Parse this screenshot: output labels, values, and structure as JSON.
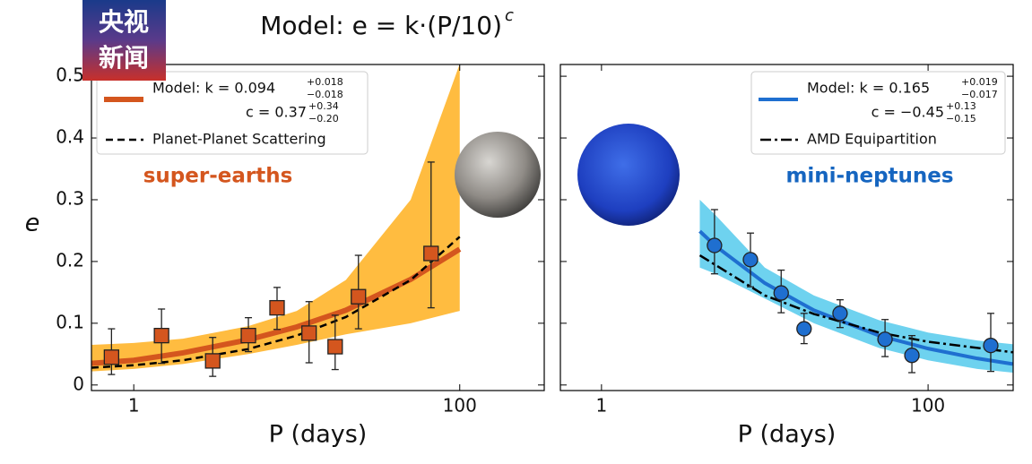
{
  "title": "Model: e = k·(P/10)",
  "title_sup": "c",
  "logo": [
    "央视",
    "新闻"
  ],
  "chart_data": [
    {
      "type": "scatter",
      "log_x": true,
      "ylabel": "e",
      "xlabel": "P (days)",
      "annotation": "super-earths",
      "annotation_color": "#d4561e",
      "xlim": [
        0.55,
        330
      ],
      "ylim": [
        -0.009,
        0.519
      ],
      "xticks": [
        1,
        100
      ],
      "yticks": [
        0,
        0.1,
        0.2,
        0.3,
        0.4,
        0.5
      ],
      "ytick_labels": true,
      "series": [
        {
          "type": "band",
          "color": "#ffa500",
          "x": [
            0.55,
            1,
            2,
            5,
            10,
            20,
            50,
            100
          ],
          "values": [
            0.065,
            0.068,
            0.075,
            0.095,
            0.12,
            0.17,
            0.3,
            0.52
          ],
          "lower": [
            0.022,
            0.026,
            0.034,
            0.05,
            0.065,
            0.082,
            0.1,
            0.12
          ]
        },
        {
          "type": "line",
          "color": "#d4561e",
          "width": 6,
          "dash": "solid",
          "name": "Model: k = 0.094",
          "name_sup": "+0.018",
          "name_sub": "−0.018",
          "name2": "c = 0.37",
          "name2_sup": "+0.34",
          "name2_sub": "−0.20",
          "x": [
            0.55,
            1,
            2,
            5,
            10,
            20,
            50,
            100
          ],
          "values": [
            0.035,
            0.04,
            0.052,
            0.073,
            0.094,
            0.121,
            0.171,
            0.22
          ]
        },
        {
          "type": "line",
          "color": "#000000",
          "width": 2.5,
          "dash": "dashed",
          "name": "Planet-Planet Scattering",
          "x": [
            0.55,
            1,
            2,
            5,
            10,
            20,
            50,
            100
          ],
          "values": [
            0.028,
            0.032,
            0.04,
            0.058,
            0.08,
            0.11,
            0.17,
            0.24
          ]
        },
        {
          "type": "points",
          "marker": "square",
          "color": "#d4561e",
          "x": [
            0.73,
            1.48,
            3.05,
            5.05,
            7.57,
            11.9,
            17.2,
            23.9,
            66.7
          ],
          "values": [
            0.045,
            0.08,
            0.039,
            0.08,
            0.125,
            0.084,
            0.062,
            0.143,
            0.213
          ],
          "err_plus": [
            0.046,
            0.043,
            0.038,
            0.029,
            0.033,
            0.051,
            0.051,
            0.067,
            0.148
          ],
          "err_minus": [
            0.028,
            0.045,
            0.025,
            0.026,
            0.035,
            0.048,
            0.037,
            0.052,
            0.088
          ]
        }
      ]
    },
    {
      "type": "scatter",
      "log_x": true,
      "xlabel": "P (days)",
      "annotation": "mini-neptunes",
      "annotation_color": "#1565c0",
      "xlim": [
        0.56,
        332
      ],
      "ylim": [
        -0.009,
        0.519
      ],
      "xticks": [
        1,
        100
      ],
      "yticks": [
        0,
        0.1,
        0.2,
        0.3,
        0.4,
        0.5
      ],
      "ytick_labels": false,
      "series": [
        {
          "type": "band",
          "color": "#3ec3ea",
          "x": [
            4,
            5,
            10,
            20,
            50,
            100,
            200,
            330
          ],
          "values": [
            0.3,
            0.275,
            0.19,
            0.145,
            0.105,
            0.085,
            0.072,
            0.066
          ],
          "lower": [
            0.19,
            0.18,
            0.14,
            0.1,
            0.06,
            0.04,
            0.026,
            0.02
          ]
        },
        {
          "type": "line",
          "color": "#1f6fd0",
          "width": 4,
          "dash": "solid",
          "name": "Model: k = 0.165",
          "name_sup": "+0.019",
          "name_sub": "−0.017",
          "name2": "c = −0.45",
          "name2_sup": "+0.13",
          "name2_sub": "−0.15",
          "x": [
            4,
            5,
            10,
            20,
            50,
            100,
            200,
            330
          ],
          "values": [
            0.249,
            0.225,
            0.165,
            0.121,
            0.08,
            0.059,
            0.043,
            0.034
          ]
        },
        {
          "type": "line",
          "color": "#000000",
          "width": 2.5,
          "dash": "dashdot",
          "name": "AMD Equipartition",
          "x": [
            4,
            10,
            20,
            50,
            100,
            330
          ],
          "values": [
            0.21,
            0.145,
            0.115,
            0.085,
            0.07,
            0.053
          ]
        },
        {
          "type": "points",
          "marker": "circle",
          "color": "#1f6fd0",
          "x": [
            4.92,
            8.17,
            12.6,
            17.4,
            28.9,
            54.5,
            79.6,
            242
          ],
          "values": [
            0.226,
            0.203,
            0.149,
            0.091,
            0.116,
            0.074,
            0.048,
            0.064
          ],
          "err_plus": [
            0.058,
            0.043,
            0.037,
            0.025,
            0.022,
            0.032,
            0.032,
            0.052
          ],
          "err_minus": [
            0.046,
            0.044,
            0.032,
            0.024,
            0.023,
            0.028,
            0.028,
            0.042
          ]
        }
      ]
    }
  ]
}
